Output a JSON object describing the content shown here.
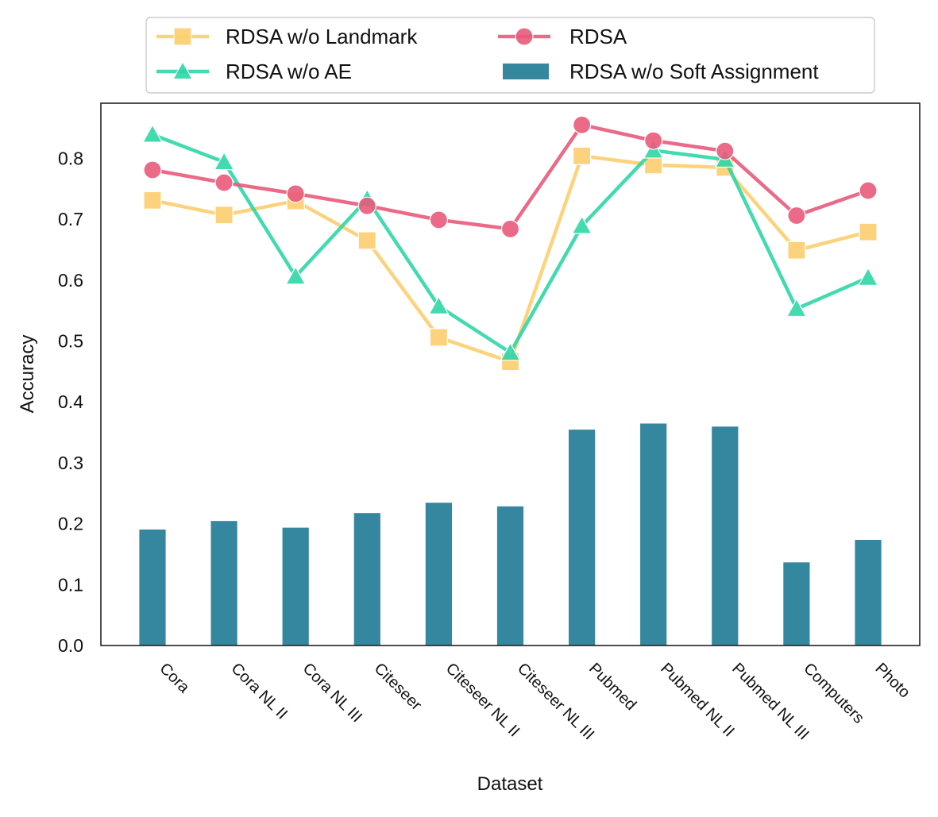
{
  "chart_data": {
    "type": "bar+line",
    "title": "",
    "xlabel": "Dataset",
    "ylabel": "Accuracy",
    "ylim": [
      0,
      0.89
    ],
    "yticks": [
      "0.0",
      "0.1",
      "0.2",
      "0.3",
      "0.4",
      "0.5",
      "0.6",
      "0.7",
      "0.8"
    ],
    "grid": false,
    "legend_position": "top-center",
    "categories": [
      "Cora",
      "Cora NL II",
      "Cora NL III",
      "Citeseer",
      "Citeseer NL II",
      "Citeseer NL III",
      "Pubmed",
      "Pubmed NL II",
      "Pubmed NL III",
      "Computers",
      "Photo"
    ],
    "bar_series": {
      "name": "RDSA w/o Soft Assignment",
      "color": "#35869f",
      "values": [
        0.191,
        0.205,
        0.194,
        0.218,
        0.235,
        0.229,
        0.355,
        0.365,
        0.36,
        0.137,
        0.174
      ]
    },
    "line_series": [
      {
        "name": "RDSA w/o Landmark",
        "color": "#fccf6e",
        "marker": "square",
        "values": [
          0.731,
          0.707,
          0.73,
          0.665,
          0.506,
          0.466,
          0.804,
          0.789,
          0.785,
          0.649,
          0.679
        ]
      },
      {
        "name": "RDSA w/o AE",
        "color": "#2ed6a7",
        "marker": "triangle",
        "values": [
          0.839,
          0.794,
          0.606,
          0.733,
          0.557,
          0.481,
          0.689,
          0.813,
          0.798,
          0.553,
          0.604
        ]
      },
      {
        "name": "RDSA",
        "color": "#e85a7c",
        "marker": "circle",
        "values": [
          0.781,
          0.76,
          0.742,
          0.722,
          0.699,
          0.684,
          0.855,
          0.829,
          0.812,
          0.706,
          0.747
        ]
      }
    ]
  }
}
